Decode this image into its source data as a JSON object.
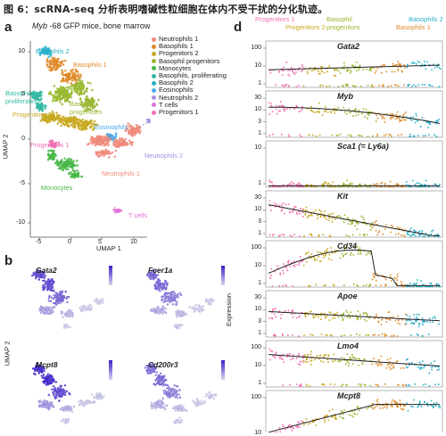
{
  "caption": "图 6：scRNA-seq 分析表明嗜碱性粒细胞在体内不受干扰的分化轨迹。",
  "panel_a": {
    "label": "a",
    "title_gene": "Myb",
    "title_rest": "-68 GFP mice, bone marrow",
    "xlabel": "UMAP 1",
    "ylabel": "UMAP 2",
    "xticks": [
      "-5",
      "0",
      "5",
      "10"
    ],
    "yticks": [
      "10",
      "5",
      "0",
      "-5",
      "-10"
    ],
    "legend": [
      {
        "name": "Neutrophils 1",
        "color": "#f08a7a"
      },
      {
        "name": "Basophils 1",
        "color": "#e08a2a"
      },
      {
        "name": "Progenitors 2",
        "color": "#c8a820"
      },
      {
        "name": "Basophil progenitors",
        "color": "#98b830"
      },
      {
        "name": "Monocytes",
        "color": "#48b848"
      },
      {
        "name": "Basophils, proliferating",
        "color": "#30b8a0"
      },
      {
        "name": "Basophils 2",
        "color": "#28b0c8"
      },
      {
        "name": "Eosinophils",
        "color": "#4aa8e8"
      },
      {
        "name": "Neutrophils 2",
        "color": "#a890e0"
      },
      {
        "name": "T cells",
        "color": "#e070d8"
      },
      {
        "name": "Progenitors 1",
        "color": "#f070b0"
      }
    ],
    "cluster_labels": [
      {
        "text": "Basophils 2",
        "color": "#28b0c8"
      },
      {
        "text": "Basophils 1",
        "color": "#e08a2a"
      },
      {
        "text": "Basophils\nproliferating",
        "color": "#30b8a0"
      },
      {
        "text": "Basophil\nprogenitors",
        "color": "#98b830"
      },
      {
        "text": "Progenitors 2",
        "color": "#c8a820"
      },
      {
        "text": "Eosinophils",
        "color": "#4aa8e8"
      },
      {
        "text": "Progenitors 1",
        "color": "#f070b0"
      },
      {
        "text": "Neutrophils 2",
        "color": "#a890e0"
      },
      {
        "text": "Neutrophils 1",
        "color": "#f08a7a"
      },
      {
        "text": "Monocytes",
        "color": "#48b848"
      },
      {
        "text": "T cells",
        "color": "#e070d8"
      }
    ]
  },
  "panel_b": {
    "label": "b",
    "ylabel": "UMAP 2",
    "genes": [
      "Gata2",
      "Fcer1a",
      "Mcpt8",
      "Cd200r3"
    ]
  },
  "panel_d": {
    "label": "d",
    "header_top": [
      {
        "text": "Progenitors 1",
        "color": "#f070b0"
      },
      {
        "text": "Basophil",
        "color": "#98b830"
      },
      {
        "text": "Basophils 2",
        "color": "#28b0c8"
      }
    ],
    "header_bottom": [
      {
        "text": "Progenitors 2",
        "color": "#c8a820"
      },
      {
        "text": "progenitors",
        "color": "#98b830"
      },
      {
        "text": "Basophils 1",
        "color": "#e08a2a"
      }
    ],
    "ylabel": "Expression",
    "genes": [
      {
        "name": "Gata2",
        "ticks": [
          "100",
          "10",
          "1"
        ]
      },
      {
        "name": "Myb",
        "ticks": [
          "30",
          "10",
          "3",
          "1"
        ]
      },
      {
        "name": "Sca1 (= Ly6a)",
        "ticks": [
          "10",
          "1"
        ]
      },
      {
        "name": "Kit",
        "ticks": [
          "30",
          "10",
          "3",
          "1"
        ]
      },
      {
        "name": "Cd34",
        "ticks": [
          "100",
          "10",
          "1"
        ]
      },
      {
        "name": "Apoe",
        "ticks": [
          "30",
          "10",
          "3",
          "1"
        ]
      },
      {
        "name": "Lmo4",
        "ticks": [
          "100",
          "10",
          "1"
        ]
      },
      {
        "name": "Mcpt8",
        "ticks": [
          "100",
          "10"
        ]
      }
    ]
  }
}
